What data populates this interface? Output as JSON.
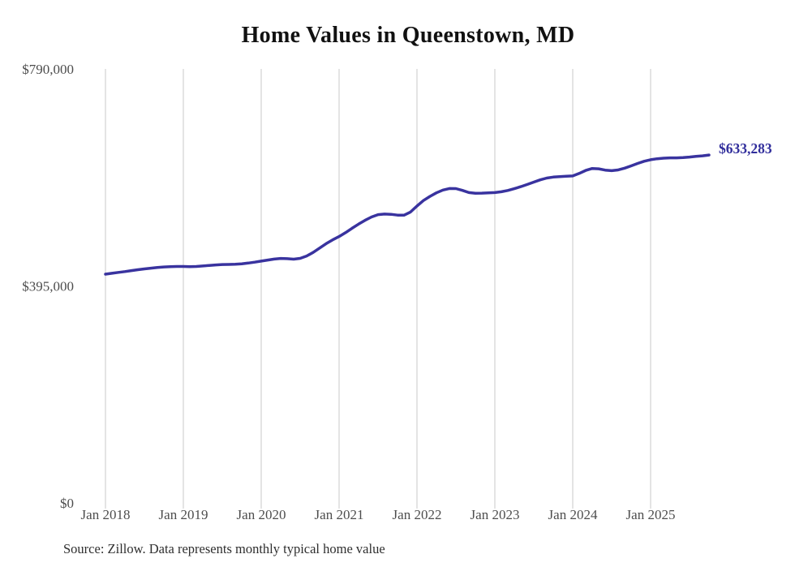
{
  "title": "Home Values in Queenstown, MD",
  "end_label": "$633,283",
  "source": "Source: Zillow. Data represents monthly typical home value",
  "colors": {
    "line": "#39339f",
    "end_label": "#312e9c",
    "grid": "#c9c9c9",
    "axis_text": "#4d4d4d",
    "title_text": "#111111",
    "background": "#ffffff"
  },
  "chart_data": {
    "type": "line",
    "title": "Home Values in Queenstown, MD",
    "xlabel": "",
    "ylabel": "",
    "ylim": [
      0,
      790000
    ],
    "y_ticks": [
      0,
      395000,
      790000
    ],
    "y_tick_labels": [
      "$0",
      "$395,000",
      "$790,000"
    ],
    "x_tick_labels": [
      "Jan 2018",
      "Jan 2019",
      "Jan 2020",
      "Jan 2021",
      "Jan 2022",
      "Jan 2023",
      "Jan 2024",
      "Jan 2025"
    ],
    "x_start_month": "2018-01",
    "x_end_month": "2025-10",
    "grid": "vertical",
    "legend": false,
    "final_value": 633283,
    "series": [
      {
        "name": "Monthly typical home value",
        "values": [
          416400,
          418000,
          419600,
          421200,
          422900,
          424500,
          426000,
          427400,
          428600,
          429500,
          430100,
          430400,
          430400,
          430200,
          430500,
          431300,
          432300,
          433300,
          434000,
          434200,
          434500,
          435300,
          436600,
          438300,
          440200,
          442100,
          443900,
          445000,
          444600,
          443800,
          445200,
          449500,
          456000,
          464000,
          472000,
          478800,
          485000,
          492000,
          500000,
          507500,
          514500,
          520500,
          524800,
          525800,
          525400,
          523900,
          523800,
          529500,
          540500,
          550500,
          558000,
          564500,
          569500,
          572400,
          572200,
          569000,
          565000,
          563600,
          564000,
          564500,
          565000,
          566500,
          568800,
          572000,
          575800,
          579800,
          584000,
          588200,
          591400,
          593200,
          594100,
          594600,
          595200,
          599800,
          605300,
          608800,
          608300,
          605800,
          604900,
          606200,
          609400,
          613600,
          618000,
          622000,
          624800,
          626500,
          627600,
          628100,
          628200,
          628700,
          629600,
          631000,
          631800,
          633283
        ]
      }
    ]
  }
}
